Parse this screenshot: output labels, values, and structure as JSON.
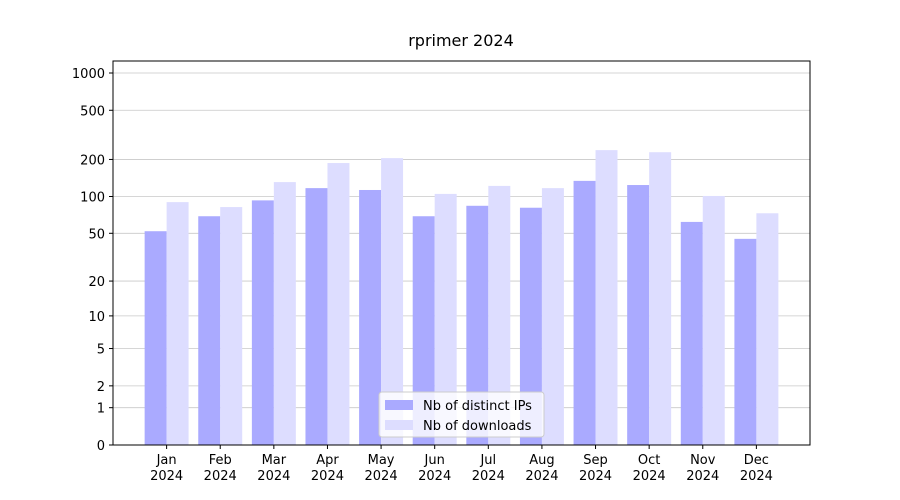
{
  "chart_data": {
    "type": "bar",
    "title": "rprimer 2024",
    "y_scale": "log1p",
    "categories": [
      "Jan\n2024",
      "Feb\n2024",
      "Mar\n2024",
      "Apr\n2024",
      "May\n2024",
      "Jun\n2024",
      "Jul\n2024",
      "Aug\n2024",
      "Sep\n2024",
      "Oct\n2024",
      "Nov\n2024",
      "Dec\n2024"
    ],
    "series": [
      {
        "name": "Nb of distinct IPs",
        "color": "#aaaaff",
        "values": [
          52,
          69,
          93,
          117,
          113,
          69,
          84,
          81,
          134,
          124,
          62,
          45
        ]
      },
      {
        "name": "Nb of downloads",
        "color": "#ddddff",
        "values": [
          90,
          82,
          131,
          187,
          205,
          105,
          122,
          117,
          238,
          229,
          101,
          73
        ]
      }
    ],
    "ylim": [
      0,
      1250
    ],
    "yticks": [
      0,
      1,
      2,
      5,
      10,
      20,
      50,
      100,
      200,
      500,
      1000
    ],
    "grid": true,
    "legend": "lower center"
  }
}
